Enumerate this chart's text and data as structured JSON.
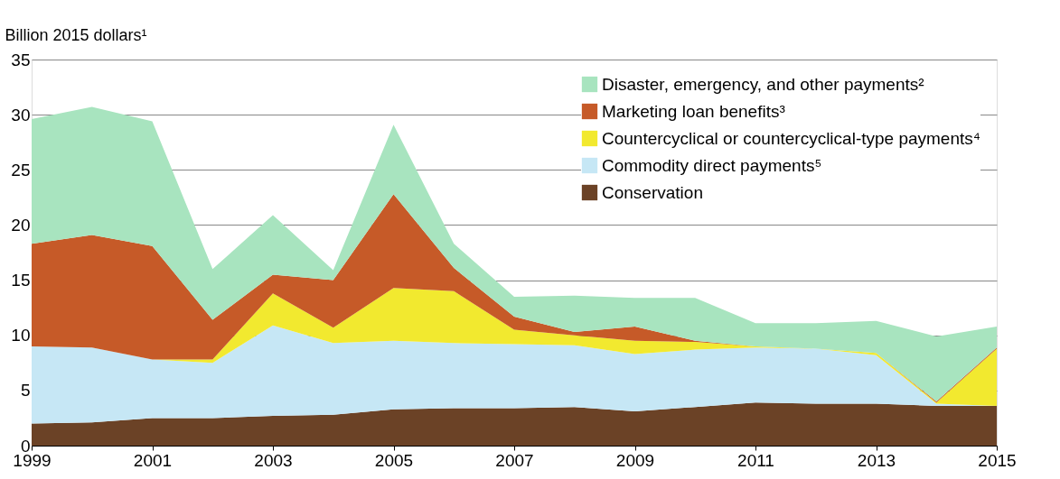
{
  "chart_data": {
    "type": "area",
    "stacked": true,
    "ylabel": "Billion 2015 dollars¹",
    "x": [
      1999,
      2000,
      2001,
      2002,
      2003,
      2004,
      2005,
      2006,
      2007,
      2008,
      2009,
      2010,
      2011,
      2012,
      2013,
      2014,
      2015
    ],
    "series": [
      {
        "name": "Conservation",
        "color": "#6b4226",
        "values": [
          2.0,
          2.1,
          2.5,
          2.5,
          2.7,
          2.8,
          3.3,
          3.4,
          3.4,
          3.5,
          3.1,
          3.5,
          3.9,
          3.8,
          3.8,
          3.6,
          3.6
        ]
      },
      {
        "name": "Commodity direct payments⁵",
        "color": "#c6e7f5",
        "values": [
          7.0,
          6.8,
          5.3,
          5.0,
          8.2,
          6.5,
          6.2,
          5.9,
          5.8,
          5.6,
          5.2,
          5.2,
          5.0,
          5.0,
          4.4,
          0.2,
          0.0
        ]
      },
      {
        "name": "Countercyclical or countercyclical-type payments⁴",
        "color": "#f2e92f",
        "values": [
          0,
          0,
          0,
          0.3,
          2.9,
          1.4,
          4.8,
          4.7,
          1.3,
          0.9,
          1.2,
          0.7,
          0.1,
          0,
          0.2,
          0.1,
          5.2
        ]
      },
      {
        "name": "Marketing loan benefits³",
        "color": "#c65a28",
        "values": [
          9.3,
          10.2,
          10.3,
          3.6,
          1.7,
          4.3,
          8.5,
          2.1,
          1.2,
          0.3,
          1.3,
          0.1,
          0,
          0,
          0,
          0.1,
          0.1
        ]
      },
      {
        "name": "Disaster, emergency, and other payments²",
        "color": "#a8e4bf",
        "values": [
          11.3,
          11.6,
          11.3,
          4.6,
          5.4,
          0.9,
          6.3,
          2.2,
          1.8,
          3.3,
          2.6,
          3.9,
          2.1,
          2.3,
          2.9,
          5.9,
          1.9
        ]
      }
    ],
    "xlim": [
      1999,
      2015
    ],
    "xticks": [
      1999,
      2001,
      2003,
      2005,
      2007,
      2009,
      2011,
      2013,
      2015
    ],
    "ylim": [
      0,
      35
    ],
    "yticks": [
      0,
      5,
      10,
      15,
      20,
      25,
      30,
      35
    ],
    "grid": "y",
    "legend": "top right"
  }
}
